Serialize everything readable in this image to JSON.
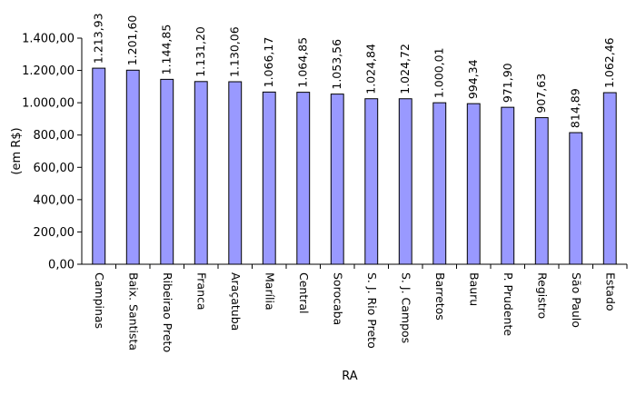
{
  "chart_data": {
    "type": "bar",
    "title": "",
    "xlabel": "RA",
    "ylabel": "(em R$)",
    "ylim": [
      0,
      1400
    ],
    "ytick_step": 200,
    "yticks": [
      "0,00",
      "200,00",
      "400,00",
      "600,00",
      "800,00",
      "1.000,00",
      "1.200,00",
      "1.400,00"
    ],
    "grid": false,
    "legend": "none",
    "bar_color": "#9999ff",
    "bar_edge_color": "#000000",
    "categories": [
      "Campinas",
      "Baix. Santista",
      "Ribeirao Preto",
      "Franca",
      "Araçatuba",
      "Marília",
      "Central",
      "Sorocaba",
      "S. J. Rio Preto",
      "S. J. Campos",
      "Barretos",
      "Bauru",
      "P. Prudente",
      "Registro",
      "São Paulo",
      "Estado"
    ],
    "values": [
      1213.93,
      1201.6,
      1144.85,
      1131.2,
      1130.06,
      1066.17,
      1064.85,
      1053.56,
      1024.84,
      1024.72,
      1000.01,
      994.34,
      971.9,
      907.63,
      814.89,
      1062.46
    ],
    "value_labels": [
      "1.213,93",
      "1.201,60",
      "1.144,85",
      "1.131,20",
      "1.130,06",
      "1.066,17",
      "1.064,85",
      "1.053,56",
      "1.024,84",
      "1.024,72",
      "1.000,01",
      "994,34",
      "971,90",
      "907,63",
      "814,89",
      "1.062,46"
    ]
  }
}
